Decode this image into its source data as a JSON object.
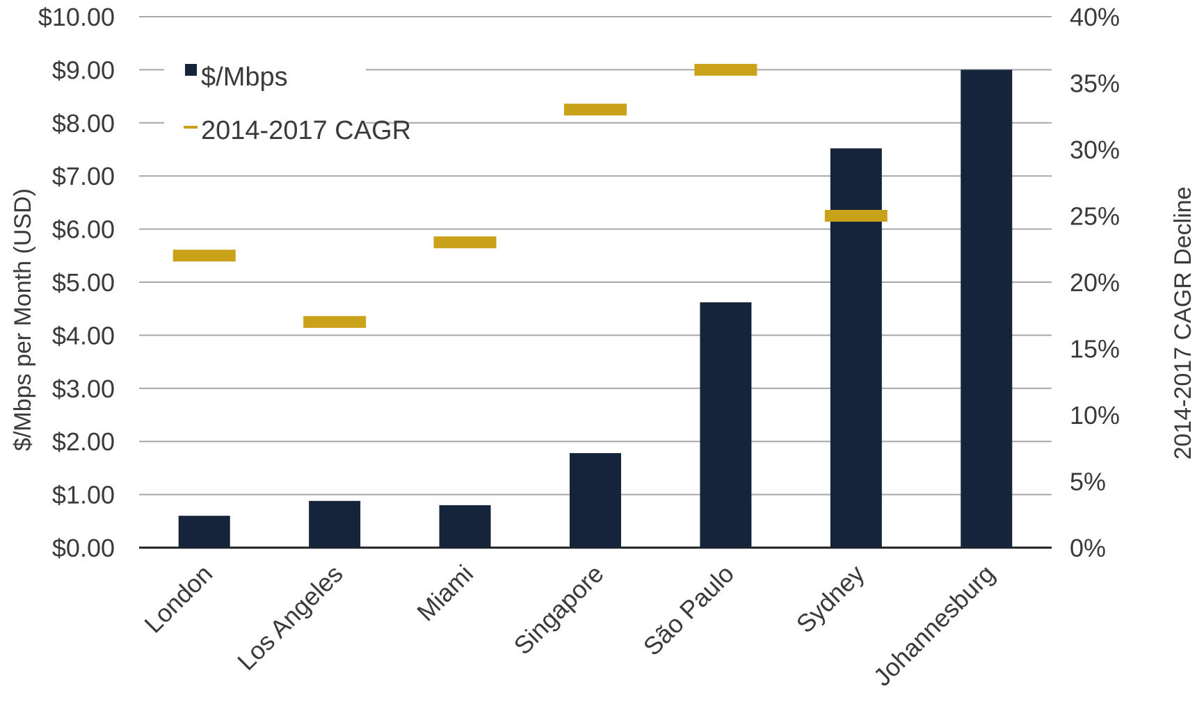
{
  "chart_data": {
    "type": "bar",
    "categories": [
      "London",
      "Los Angeles",
      "Miami",
      "Singapore",
      "São Paulo",
      "Sydney",
      "Johannesburg"
    ],
    "series": [
      {
        "name": "$/Mbps",
        "type": "bar",
        "axis": "left",
        "color": "#15243a",
        "values": [
          0.6,
          0.88,
          0.8,
          1.78,
          4.62,
          7.52,
          9.0
        ]
      },
      {
        "name": "2014-2017 CAGR",
        "type": "marker",
        "axis": "right",
        "color": "#c9a21a",
        "values": [
          22,
          17,
          23,
          33,
          36,
          25,
          null
        ]
      }
    ],
    "ylabel": "$/Mbps per Month (USD)",
    "y2label": "2014-2017 CAGR Decline",
    "ylim": [
      0,
      10
    ],
    "y2lim": [
      0,
      40
    ],
    "yticks": [
      "$0.00",
      "$1.00",
      "$2.00",
      "$3.00",
      "$4.00",
      "$5.00",
      "$6.00",
      "$7.00",
      "$8.00",
      "$9.00",
      "$10.00"
    ],
    "y2ticks": [
      "0%",
      "5%",
      "10%",
      "15%",
      "20%",
      "25%",
      "30%",
      "35%",
      "40%"
    ],
    "grid": true,
    "legend": {
      "position": "top-left",
      "entries": [
        "$/Mbps",
        "2014-2017 CAGR"
      ]
    }
  }
}
